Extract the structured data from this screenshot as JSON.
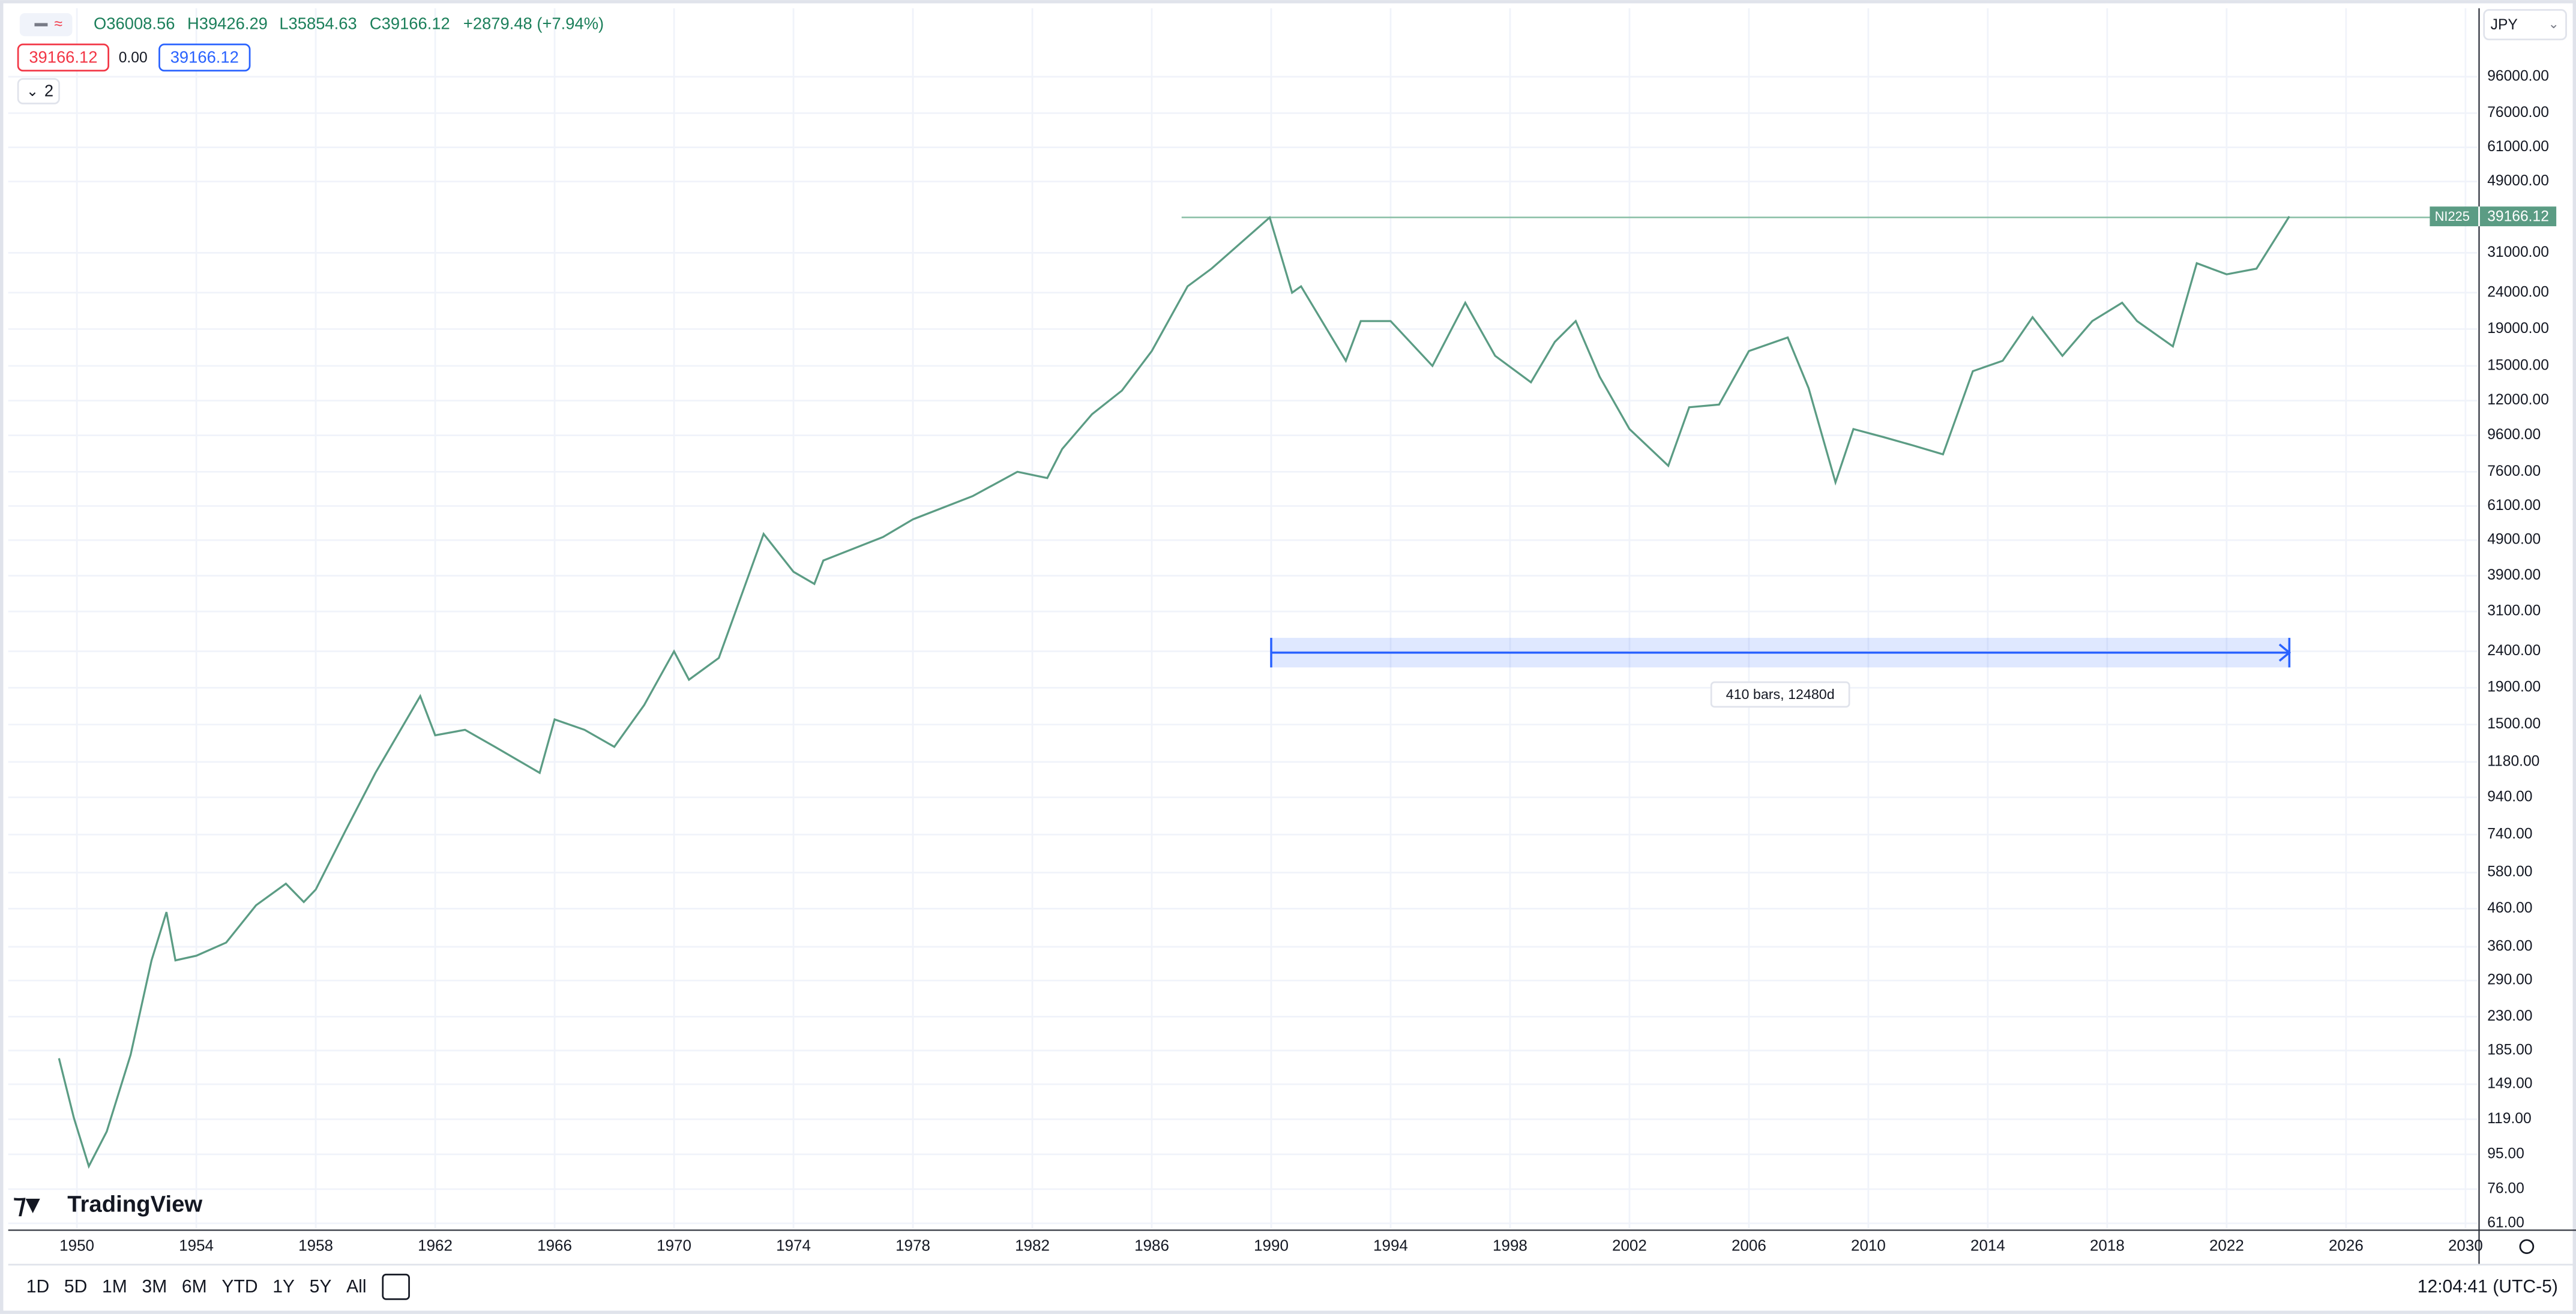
{
  "header": {
    "open": "O36008.56",
    "high": "H39426.29",
    "low": "L35854.63",
    "close": "C39166.12",
    "change": "+2879.48 (+7.94%)",
    "bid": "39166.12",
    "spread": "0.00",
    "ask": "39166.12",
    "indicators": "2"
  },
  "chart_data": {
    "type": "line",
    "log_scale": true,
    "grid": true,
    "x": [
      1949.4,
      1949.9,
      1950.4,
      1951,
      1951.8,
      1952.5,
      1953,
      1953.3,
      1954,
      1955,
      1956,
      1957,
      1957.6,
      1958,
      1959,
      1960,
      1961.5,
      1962,
      1963,
      1964,
      1965.5,
      1966,
      1967,
      1968,
      1969,
      1970,
      1970.5,
      1971.5,
      1972,
      1973,
      1974,
      1974.7,
      1975,
      1977,
      1978,
      1980,
      1981.5,
      1982.5,
      1983,
      1984,
      1985,
      1986,
      1987.2,
      1988,
      1989.95,
      1990.7,
      1991,
      1992.5,
      1993,
      1994,
      1995.4,
      1996.5,
      1997.5,
      1998.7,
      1999.5,
      2000.2,
      2001,
      2002,
      2003.3,
      2004,
      2005,
      2006,
      2007.3,
      2008,
      2008.9,
      2009.5,
      2010.5,
      2011.5,
      2012.5,
      2013.5,
      2014.5,
      2015.5,
      2016.5,
      2017.5,
      2018.5,
      2019,
      2020.2,
      2021,
      2022,
      2023,
      2024.1
    ],
    "series": [
      {
        "name": "NI225",
        "color": "#5b9c84",
        "values": [
          176,
          120,
          88,
          110,
          180,
          330,
          450,
          330,
          340,
          370,
          470,
          540,
          480,
          520,
          760,
          1100,
          1800,
          1400,
          1450,
          1300,
          1100,
          1550,
          1450,
          1300,
          1700,
          2400,
          2000,
          2300,
          3000,
          5100,
          4000,
          3700,
          4300,
          5000,
          5600,
          6500,
          7600,
          7300,
          8800,
          11000,
          12800,
          16500,
          25000,
          28000,
          38900,
          24000,
          25000,
          15500,
          20000,
          20000,
          15000,
          22500,
          16000,
          13500,
          17500,
          20000,
          14000,
          10000,
          7900,
          11500,
          11700,
          16500,
          18000,
          13000,
          7100,
          10000,
          9500,
          9000,
          8500,
          14500,
          15500,
          20500,
          16000,
          20000,
          22500,
          20000,
          17000,
          29000,
          27000,
          28000,
          39166.12
        ]
      }
    ],
    "last_label": "39166.12",
    "level": {
      "value": 38916,
      "x_start": 1987,
      "color": "#8cc0a8"
    },
    "range": {
      "x": [
        1990,
        2024.1
      ],
      "value": 2380,
      "label": "410 bars, 12480d"
    },
    "xlim": [
      1947.7,
      2030.4
    ],
    "xticks": [
      1950,
      1954,
      1958,
      1962,
      1966,
      1970,
      1974,
      1978,
      1982,
      1986,
      1990,
      1994,
      1998,
      2002,
      2006,
      2010,
      2014,
      2018,
      2022,
      2026,
      2030
    ],
    "ylim": [
      59,
      149000
    ],
    "yticks": [
      {
        "value": 96000,
        "label": "96000.00"
      },
      {
        "value": 76000,
        "label": "76000.00"
      },
      {
        "value": 61000,
        "label": "61000.00"
      },
      {
        "value": 49000,
        "label": "49000.00"
      },
      {
        "value": 31000,
        "label": "31000.00"
      },
      {
        "value": 24000,
        "label": "24000.00"
      },
      {
        "value": 19000,
        "label": "19000.00"
      },
      {
        "value": 15000,
        "label": "15000.00"
      },
      {
        "value": 12000,
        "label": "12000.00"
      },
      {
        "value": 9600,
        "label": "9600.00"
      },
      {
        "value": 7600,
        "label": "7600.00"
      },
      {
        "value": 6100,
        "label": "6100.00"
      },
      {
        "value": 4900,
        "label": "4900.00"
      },
      {
        "value": 3900,
        "label": "3900.00"
      },
      {
        "value": 3100,
        "label": "3100.00"
      },
      {
        "value": 2400,
        "label": "2400.00"
      },
      {
        "value": 1900,
        "label": "1900.00"
      },
      {
        "value": 1500,
        "label": "1500.00"
      },
      {
        "value": 1180,
        "label": "1180.00"
      },
      {
        "value": 940,
        "label": "940.00"
      },
      {
        "value": 740,
        "label": "740.00"
      },
      {
        "value": 580,
        "label": "580.00"
      },
      {
        "value": 460,
        "label": "460.00"
      },
      {
        "value": 360,
        "label": "360.00"
      },
      {
        "value": 290,
        "label": "290.00"
      },
      {
        "value": 230,
        "label": "230.00"
      },
      {
        "value": 185,
        "label": "185.00"
      },
      {
        "value": 149,
        "label": "149.00"
      },
      {
        "value": 119,
        "label": "119.00"
      },
      {
        "value": 95,
        "label": "95.00"
      },
      {
        "value": 76,
        "label": "76.00"
      },
      {
        "value": 61,
        "label": "61.00"
      }
    ]
  },
  "ui": {
    "currency": "JPY",
    "logo": "TradingView",
    "ranges": [
      "1D",
      "5D",
      "1M",
      "3M",
      "6M",
      "YTD",
      "1Y",
      "5Y",
      "All"
    ],
    "clock": "12:04:41 (UTC-5)"
  }
}
